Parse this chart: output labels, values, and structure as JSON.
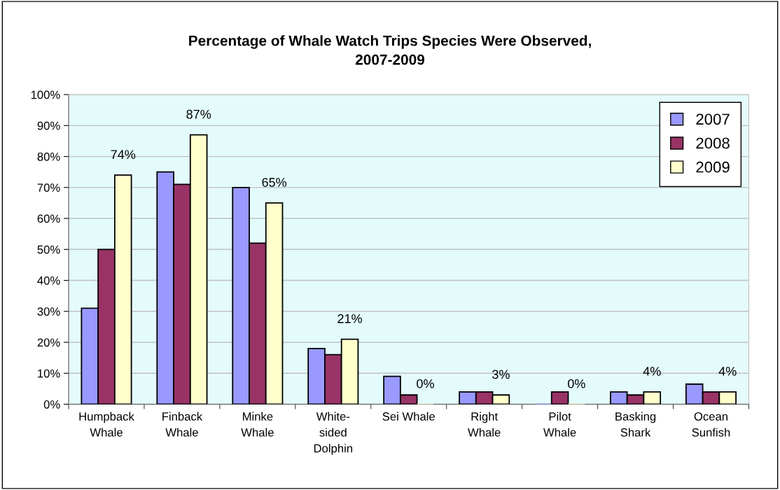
{
  "chart_data": {
    "type": "bar",
    "title": "Percentage of Whale Watch Trips Species Were Observed,\n2007-2009",
    "categories": [
      "Humpback\nWhale",
      "Finback\nWhale",
      "Minke\nWhale",
      "White-\nsided\nDolphin",
      "Sei Whale",
      "Right\nWhale",
      "Pilot\nWhale",
      "Basking\nShark",
      "Ocean\nSunfish"
    ],
    "series": [
      {
        "name": "2007",
        "color": "#9999ff",
        "values": [
          31,
          75,
          70,
          18,
          9,
          4,
          0,
          4,
          6.5
        ]
      },
      {
        "name": "2008",
        "color": "#993366",
        "values": [
          50,
          71,
          52,
          16,
          3,
          4,
          4,
          3,
          4
        ]
      },
      {
        "name": "2009",
        "color": "#ffffcc",
        "values": [
          74,
          87,
          65,
          21,
          0,
          3,
          0,
          4,
          4
        ],
        "value_labels": [
          "74%",
          "87%",
          "65%",
          "21%",
          "0%",
          "3%",
          "0%",
          "4%",
          "4%"
        ]
      }
    ],
    "ylim": [
      0,
      100
    ],
    "yticks": [
      {
        "value": 0,
        "label": "0%"
      },
      {
        "value": 10,
        "label": "10%"
      },
      {
        "value": 20,
        "label": "20%"
      },
      {
        "value": 30,
        "label": "30%"
      },
      {
        "value": 40,
        "label": "40%"
      },
      {
        "value": 50,
        "label": "50%"
      },
      {
        "value": 60,
        "label": "60%"
      },
      {
        "value": 70,
        "label": "70%"
      },
      {
        "value": 80,
        "label": "80%"
      },
      {
        "value": 90,
        "label": "90%"
      },
      {
        "value": 100,
        "label": "100%"
      }
    ],
    "grid": "y",
    "legend": "top right"
  }
}
